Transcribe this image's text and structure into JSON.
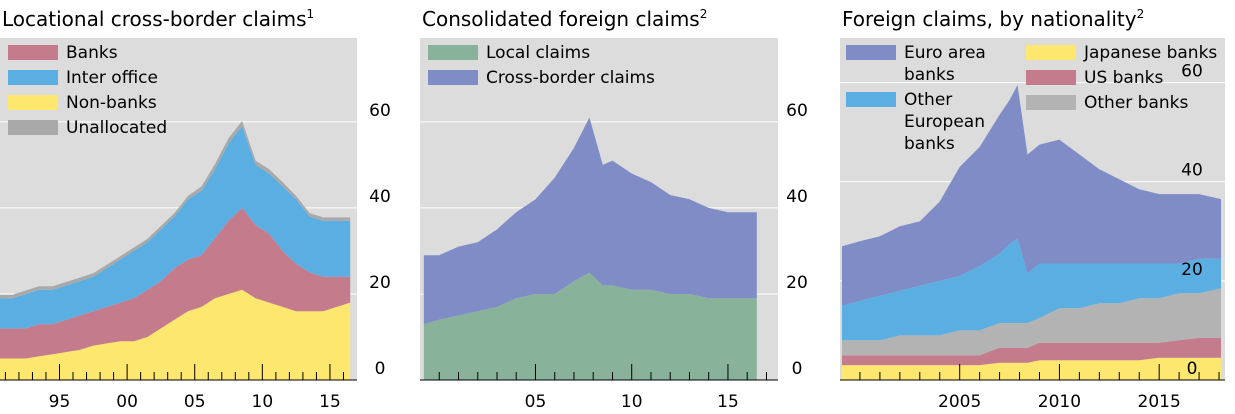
{
  "chart_data": [
    {
      "type": "area",
      "title": "Locational cross-border claims",
      "footnote": "1",
      "x": [
        1990.6,
        1991.5,
        1992.5,
        1993.5,
        1994.5,
        1995.5,
        1996.5,
        1997.5,
        1998.5,
        1999.5,
        2000.5,
        2001.5,
        2002.5,
        2003.5,
        2004.5,
        2005.5,
        2006.5,
        2007.5,
        2008.5,
        2009.5,
        2010.5,
        2011.5,
        2012.5,
        2013.5,
        2014.5,
        2015.5,
        2016.5
      ],
      "series": [
        {
          "name": "Banks",
          "color": "#c47c8c",
          "values": [
            7,
            7,
            7,
            7.5,
            7,
            7.5,
            8,
            8,
            8.5,
            9,
            10,
            11,
            11,
            12,
            12,
            12,
            14,
            17,
            19,
            17,
            16,
            13,
            11,
            9,
            8,
            7,
            6
          ]
        },
        {
          "name": "Inter office",
          "color": "#5aaee2",
          "values": [
            7,
            7,
            8,
            8,
            8,
            8,
            8,
            8,
            9,
            10,
            11,
            11,
            12,
            12,
            14,
            15,
            16,
            18,
            19,
            14,
            14,
            15,
            15,
            13,
            13,
            13,
            13
          ]
        },
        {
          "name": "Non-banks",
          "color": "#fde76e",
          "values": [
            5,
            5,
            5,
            5.5,
            6,
            6.5,
            7,
            8,
            8.5,
            9,
            9,
            10,
            12,
            14,
            16,
            17,
            19,
            20,
            21,
            19,
            18,
            17,
            16,
            16,
            16,
            17,
            18
          ]
        },
        {
          "name": "Unallocated",
          "color": "#a9a9a9",
          "values": [
            0.8,
            0.8,
            0.8,
            0.8,
            0.8,
            0.8,
            0.8,
            0.8,
            0.8,
            0.8,
            0.8,
            0.8,
            0.8,
            0.8,
            0.8,
            1,
            1.2,
            1.2,
            1.2,
            1,
            1,
            1,
            0.8,
            0.8,
            0.8,
            0.8,
            0.8
          ]
        }
      ],
      "stack": [
        2,
        0,
        1,
        3
      ],
      "xlim": [
        1990.6,
        2017
      ],
      "xticks": [
        {
          "value": 1995,
          "label": "95"
        },
        {
          "value": 2000,
          "label": "00"
        },
        {
          "value": 2005,
          "label": "05"
        },
        {
          "value": 2010,
          "label": "10"
        },
        {
          "value": 2015,
          "label": "15"
        }
      ],
      "xminorticks": [
        1991,
        1992,
        1993,
        1994,
        1996,
        1997,
        1998,
        1999,
        2001,
        2002,
        2003,
        2004,
        2006,
        2007,
        2008,
        2009,
        2011,
        2012,
        2013,
        2014,
        2016
      ],
      "ylim": [
        0,
        79.5
      ],
      "yticks": [
        0,
        20,
        40,
        60
      ],
      "grid": true,
      "background": "#dcdcdc"
    },
    {
      "type": "area",
      "title": "Consolidated foreign claims",
      "footnote": "2",
      "x": [
        1999.2,
        2000,
        2001,
        2002,
        2003,
        2004,
        2005,
        2006,
        2007,
        2007.8,
        2008.5,
        2009,
        2010,
        2011,
        2012,
        2013,
        2014,
        2015,
        2016,
        2016.5
      ],
      "series": [
        {
          "name": "Local claims",
          "color": "#88b39a",
          "values": [
            13,
            14,
            15,
            16,
            17,
            19,
            20,
            20,
            23,
            25,
            22,
            22,
            21,
            21,
            20,
            20,
            19,
            19,
            19,
            19
          ]
        },
        {
          "name": "Cross-border claims",
          "color": "#7f8cc6",
          "values": [
            16,
            15,
            16,
            16,
            18,
            20,
            22,
            27,
            31,
            36,
            28,
            29,
            27,
            25,
            23,
            22,
            21,
            20,
            20,
            20
          ]
        }
      ],
      "stack": [
        0,
        1
      ],
      "xlim": [
        1999,
        2017.6
      ],
      "xticks": [
        {
          "value": 2005,
          "label": "05"
        },
        {
          "value": 2010,
          "label": "10"
        },
        {
          "value": 2015,
          "label": "15"
        }
      ],
      "xminorticks": [
        2000,
        2001,
        2002,
        2003,
        2004,
        2006,
        2007,
        2008,
        2009,
        2011,
        2012,
        2013,
        2014,
        2016,
        2017
      ],
      "ylim": [
        0,
        79.5
      ],
      "yticks": [
        0,
        20,
        40,
        60
      ],
      "grid": true,
      "background": "#dcdcdc"
    },
    {
      "type": "area",
      "title": "Foreign claims, by nationality",
      "footnote": "2",
      "x": [
        1999.1,
        2000,
        2001,
        2002,
        2003,
        2004,
        2005,
        2006,
        2007,
        2007.5,
        2007.9,
        2008.4,
        2009,
        2010,
        2011,
        2012,
        2013,
        2014,
        2015,
        2016,
        2017,
        2018.1
      ],
      "series": [
        {
          "name": "Euro area banks",
          "color": "#7f8cc6",
          "values": [
            12,
            12,
            12,
            13,
            13,
            16,
            22,
            24,
            28,
            29,
            31,
            24,
            24,
            25,
            22,
            19,
            17,
            15,
            14,
            14,
            13,
            12
          ]
        },
        {
          "name": "Other European banks",
          "color": "#5aaee2",
          "values": [
            7,
            8,
            9,
            9,
            10,
            11,
            11,
            13,
            14,
            16,
            17,
            10,
            11,
            9,
            9,
            8,
            8,
            7,
            7,
            6,
            7,
            6
          ]
        },
        {
          "name": "Japanese banks",
          "color": "#fde76e",
          "values": [
            3,
            3,
            3,
            3,
            3,
            3,
            3,
            3,
            3.5,
            3.5,
            3.5,
            3.5,
            4,
            4,
            4,
            4,
            4,
            4,
            4.5,
            4.5,
            4.5,
            4.5
          ]
        },
        {
          "name": "US banks",
          "color": "#c47c8c",
          "values": [
            2,
            2,
            2,
            2,
            2,
            2,
            2,
            2,
            3,
            3,
            3,
            3,
            3.5,
            3.5,
            3.5,
            3.5,
            3.5,
            3.5,
            3,
            3.5,
            4,
            4
          ]
        },
        {
          "name": "Other banks",
          "color": "#b3b3b3",
          "values": [
            3,
            3,
            3,
            4,
            4,
            4,
            5,
            5,
            5,
            5,
            5,
            5,
            5,
            7,
            7,
            8,
            8,
            9,
            9,
            9.5,
            9,
            10
          ]
        }
      ],
      "stack": [
        2,
        3,
        4,
        1,
        0
      ],
      "xlim": [
        1999,
        2018.3
      ],
      "xticks": [
        2005,
        2010,
        2015
      ],
      "xminorticks": [
        2000,
        2001,
        2002,
        2003,
        2004,
        2006,
        2007,
        2008,
        2009,
        2011,
        2012,
        2013,
        2014,
        2016,
        2017,
        2018
      ],
      "ylim": [
        0,
        69
      ],
      "yticks": [
        0,
        20,
        40,
        60
      ],
      "grid": true,
      "background": "#dcdcdc"
    }
  ]
}
